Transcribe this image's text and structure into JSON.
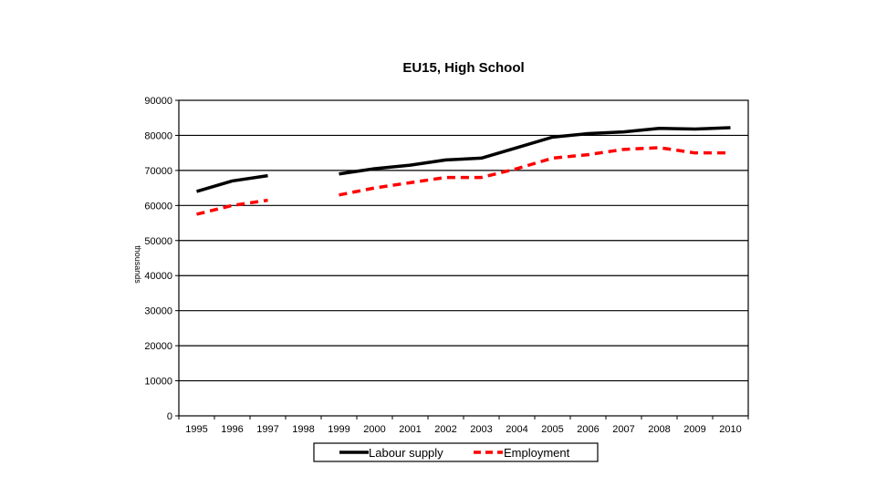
{
  "chart_data": {
    "type": "line",
    "title": "EU15, High School",
    "ylabel": "thousands",
    "xlabel": "",
    "categories": [
      "1995",
      "1996",
      "1997",
      "1998",
      "1999",
      "2000",
      "2001",
      "2002",
      "2003",
      "2004",
      "2005",
      "2006",
      "2007",
      "2008",
      "2009",
      "2010"
    ],
    "ylim": [
      0,
      90000
    ],
    "yticks": [
      0,
      10000,
      20000,
      30000,
      40000,
      50000,
      60000,
      70000,
      80000,
      90000
    ],
    "grid": true,
    "legend_position": "bottom",
    "series": [
      {
        "name": "Labour supply",
        "color": "#000000",
        "dashed": false,
        "values": [
          64000,
          67000,
          68500,
          null,
          69000,
          70500,
          71500,
          73000,
          73500,
          76500,
          79500,
          80500,
          81000,
          82000,
          81800,
          82200
        ]
      },
      {
        "name": "Employment",
        "color": "#ff0000",
        "dashed": true,
        "values": [
          57500,
          60000,
          61500,
          null,
          63000,
          65000,
          66500,
          68000,
          68000,
          70500,
          73500,
          74500,
          76000,
          76500,
          75000,
          75000
        ]
      }
    ]
  }
}
